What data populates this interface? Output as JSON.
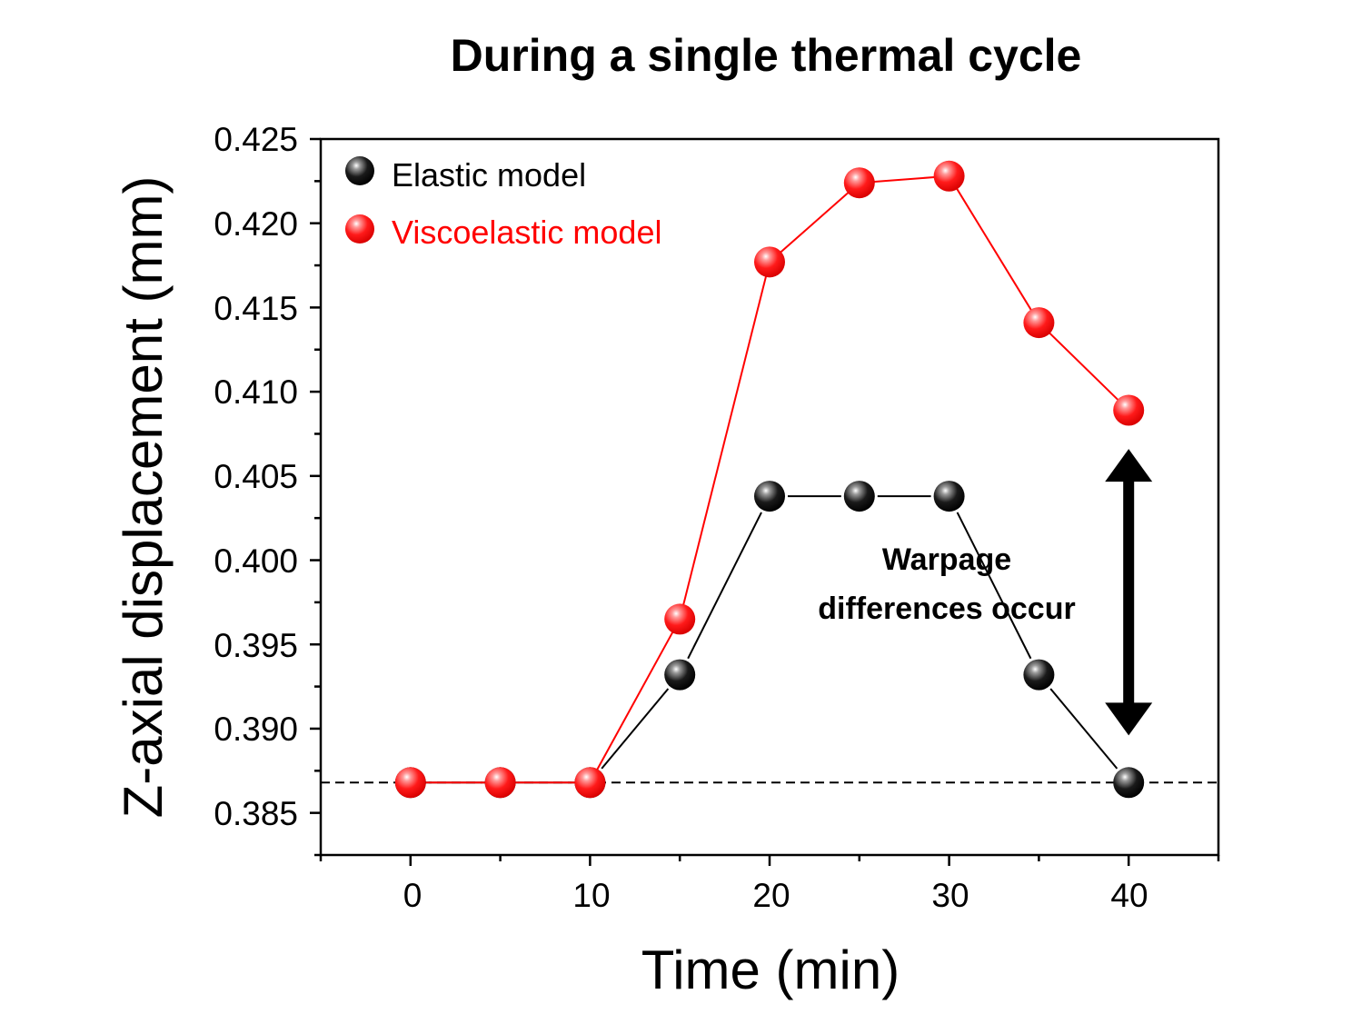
{
  "chart_data": {
    "type": "line",
    "title": "During a single thermal cycle",
    "xlabel": "Time (min)",
    "ylabel": "Z-axial displacement (mm)",
    "xlim": [
      -5,
      45
    ],
    "ylim": [
      0.3825,
      0.425
    ],
    "xticks": [
      0,
      10,
      20,
      30,
      40
    ],
    "yticks": [
      0.385,
      0.39,
      0.395,
      0.4,
      0.405,
      0.41,
      0.415,
      0.42,
      0.425
    ],
    "xtick_labels": [
      "0",
      "10",
      "20",
      "30",
      "40"
    ],
    "ytick_labels": [
      "0.385",
      "0.390",
      "0.395",
      "0.400",
      "0.405",
      "0.410",
      "0.415",
      "0.420",
      "0.425"
    ],
    "grid": false,
    "legend_position": "top-left",
    "baseline": 0.3868,
    "series": [
      {
        "name": "Elastic model",
        "color": "#000000",
        "x": [
          0,
          5,
          10,
          15,
          20,
          25,
          30,
          35,
          40
        ],
        "y": [
          0.3868,
          0.3868,
          0.3868,
          0.3932,
          0.4038,
          0.4038,
          0.4038,
          0.3932,
          0.3868
        ]
      },
      {
        "name": "Viscoelastic model",
        "color": "#ff0000",
        "x": [
          0,
          5,
          10,
          15,
          20,
          25,
          30,
          35,
          40
        ],
        "y": [
          0.3868,
          0.3868,
          0.3868,
          0.3965,
          0.4177,
          0.4224,
          0.4228,
          0.4141,
          0.4089
        ]
      }
    ],
    "annotations": [
      {
        "text_line1": "Warpage",
        "text_line2": "differences occur",
        "arrow": "double-headed vertical",
        "arrow_y_range": [
          0.3896,
          0.4066
        ],
        "arrow_x": 40
      }
    ]
  }
}
